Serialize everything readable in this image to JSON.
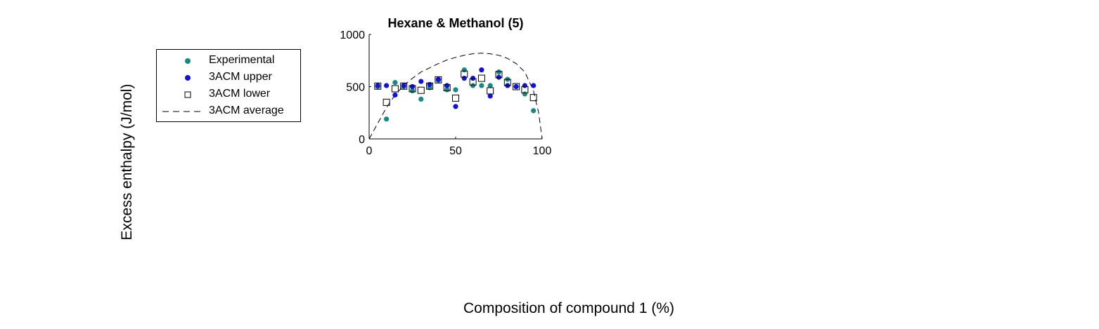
{
  "figure": {
    "xlabel": "Composition of compound 1 (%)",
    "ylabel": "Excess enthalpy (J/mol)"
  },
  "legend": {
    "items": [
      {
        "label": "Experimental",
        "marker": "dot",
        "color": "#138a84"
      },
      {
        "label": "3ACM upper",
        "marker": "dot",
        "color": "#1010e0"
      },
      {
        "label": "3ACM lower",
        "marker": "square",
        "color": "#000000"
      },
      {
        "label": "3ACM average",
        "marker": "dashed-line",
        "color": "#000000"
      }
    ]
  },
  "chart_data": {
    "type": "scatter",
    "title": "Hexane & Methanol (5)",
    "xlabel": "",
    "ylabel": "",
    "xlim": [
      0,
      100
    ],
    "ylim": [
      0,
      1000
    ],
    "xticks": [
      0,
      50,
      100
    ],
    "yticks": [
      0,
      500,
      1000
    ],
    "grid": false,
    "legend_position": "outside-left",
    "series": [
      {
        "name": "Experimental",
        "marker": "dot",
        "color": "#138a84",
        "x": [
          5,
          10,
          15,
          20,
          25,
          30,
          35,
          40,
          45,
          50,
          55,
          60,
          65,
          70,
          75,
          80,
          85,
          90,
          95
        ],
        "y": [
          500,
          190,
          540,
          500,
          460,
          380,
          490,
          560,
          470,
          470,
          660,
          510,
          510,
          510,
          640,
          570,
          500,
          430,
          270
        ]
      },
      {
        "name": "3ACM upper",
        "marker": "dot",
        "color": "#1010e0",
        "x": [
          5,
          10,
          15,
          20,
          25,
          30,
          35,
          40,
          45,
          50,
          55,
          60,
          65,
          70,
          75,
          80,
          85,
          90,
          95
        ],
        "y": [
          510,
          510,
          420,
          510,
          500,
          550,
          520,
          570,
          510,
          310,
          580,
          580,
          660,
          410,
          590,
          510,
          500,
          510,
          510
        ]
      },
      {
        "name": "3ACM lower",
        "marker": "square",
        "color": "#000000",
        "x": [
          5,
          10,
          15,
          20,
          25,
          30,
          35,
          40,
          45,
          50,
          55,
          60,
          65,
          70,
          75,
          80,
          85,
          90,
          95
        ],
        "y": [
          505,
          350,
          480,
          505,
          480,
          465,
          505,
          565,
          490,
          390,
          620,
          545,
          580,
          460,
          615,
          540,
          500,
          470,
          395
        ]
      },
      {
        "name": "3ACM average",
        "marker": "dashed-line",
        "color": "#000000",
        "x": [
          0,
          5,
          10,
          15,
          20,
          25,
          30,
          35,
          40,
          45,
          50,
          55,
          60,
          65,
          70,
          75,
          80,
          85,
          90,
          95,
          98,
          100
        ],
        "y": [
          0,
          150,
          300,
          420,
          510,
          580,
          640,
          680,
          720,
          755,
          780,
          800,
          815,
          820,
          815,
          800,
          770,
          720,
          640,
          460,
          250,
          0
        ]
      }
    ]
  }
}
